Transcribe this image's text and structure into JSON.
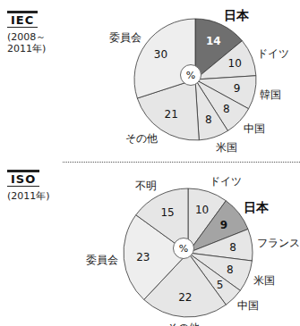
{
  "chart_data": [
    {
      "type": "pie",
      "title": "IEC",
      "subtitle": [
        "(2008～",
        "2011年)"
      ],
      "annotation": "%",
      "categories": [
        "日本",
        "ドイツ",
        "韓国",
        "中国",
        "米国",
        "その他",
        "委員会"
      ],
      "values": [
        14,
        10,
        9,
        8,
        8,
        21,
        30
      ],
      "colors": [
        "#6f6f6f",
        "#e6e6e6",
        "#e6e6e6",
        "#e6e6e6",
        "#e6e6e6",
        "#e6e6e6",
        "#eeeeee"
      ],
      "data_labels": true
    },
    {
      "type": "pie",
      "title": "ISO",
      "subtitle": [
        "(2011年)"
      ],
      "annotation": "%",
      "categories": [
        "ドイツ",
        "日本",
        "フランス",
        "米国",
        "中国",
        "その他",
        "委員会",
        "不明"
      ],
      "values": [
        10,
        9,
        8,
        8,
        5,
        22,
        23,
        15
      ],
      "colors": [
        "#e6e6e6",
        "#a4a4a4",
        "#e6e6e6",
        "#e6e6e6",
        "#e6e6e6",
        "#e6e6e6",
        "#eeeeee",
        "#e6e6e6"
      ],
      "data_labels": true
    }
  ]
}
